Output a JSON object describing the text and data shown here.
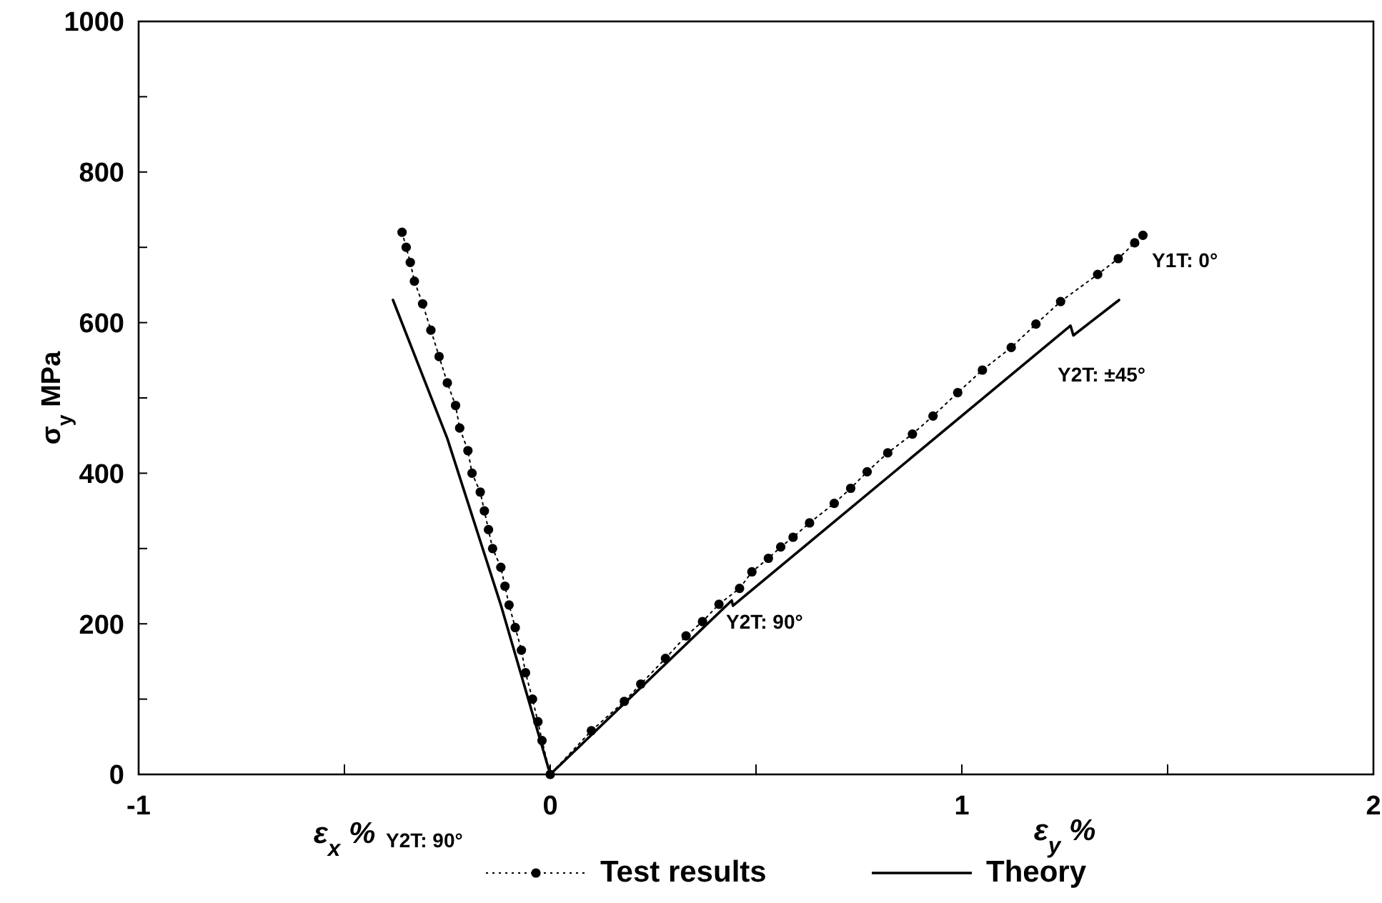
{
  "chart_data": {
    "type": "line",
    "xlabel": "ε$_{x}$ %",
    "ylabel": "σ$_{y}$ MPa",
    "xlim": [
      -1,
      2
    ],
    "xticks": [
      -1,
      {
        "value": -0.5,
        "label": null
      },
      0,
      {
        "value": 0.5,
        "label": null
      },
      1,
      {
        "value": 1.5,
        "label": null
      },
      2
    ],
    "ylim": [
      0,
      1000
    ],
    "yticks": [
      0,
      {
        "value": 100,
        "label": null
      },
      200,
      {
        "value": 300,
        "label": null
      },
      400,
      {
        "value": 500,
        "label": null
      },
      600,
      {
        "value": 700,
        "label": null
      },
      800,
      {
        "value": 900,
        "label": null
      },
      1000
    ],
    "grid": false,
    "legend": "bottom",
    "series": [
      {
        "name": "Test results",
        "color": "#000000",
        "marker": "circle",
        "line_style": "dotted",
        "x": [
          -0.36,
          -0.35,
          -0.34,
          -0.33,
          -0.31,
          -0.29,
          -0.27,
          -0.25,
          -0.23,
          -0.22,
          -0.2,
          -0.19,
          -0.17,
          -0.16,
          -0.15,
          -0.14,
          -0.12,
          -0.11,
          -0.1,
          -0.085,
          -0.07,
          -0.06,
          -0.043,
          -0.03,
          -0.02,
          0,
          0.1,
          0.18,
          0.22,
          0.28,
          0.33,
          0.37,
          0.41,
          0.46,
          0.49,
          0.53,
          0.56,
          0.59,
          0.63,
          0.69,
          0.73,
          0.77,
          0.82,
          0.88,
          0.93,
          0.99,
          1.05,
          1.12,
          1.18,
          1.24,
          1.33,
          1.38,
          1.42,
          1.44
        ],
        "values": [
          720,
          700,
          680,
          655,
          625,
          590,
          555,
          520,
          490,
          460,
          430,
          400,
          375,
          350,
          325,
          300,
          275,
          250,
          225,
          195,
          165,
          135,
          100,
          70,
          45,
          0,
          58,
          97,
          120,
          154,
          184,
          203,
          226,
          247,
          269,
          287,
          302,
          315,
          334,
          360,
          380,
          402,
          427,
          452,
          476,
          507,
          537,
          567,
          598,
          628,
          664,
          685,
          706,
          716
        ]
      },
      {
        "name": "Theory",
        "color": "#000000",
        "marker": "none",
        "line_style": "solid",
        "x": [
          -0.382,
          -0.25,
          -0.12,
          0,
          0.441,
          0.444,
          1.264,
          1.271,
          1.382
        ],
        "values": [
          630,
          446,
          225,
          0,
          231,
          224,
          596,
          583,
          630
        ]
      }
    ],
    "annotations": [
      "Y1T: 0°",
      "Y2T: ±45°",
      "Y2T: 90°",
      "Y2T: 90°",
      "ε$_{y}$ %"
    ]
  }
}
